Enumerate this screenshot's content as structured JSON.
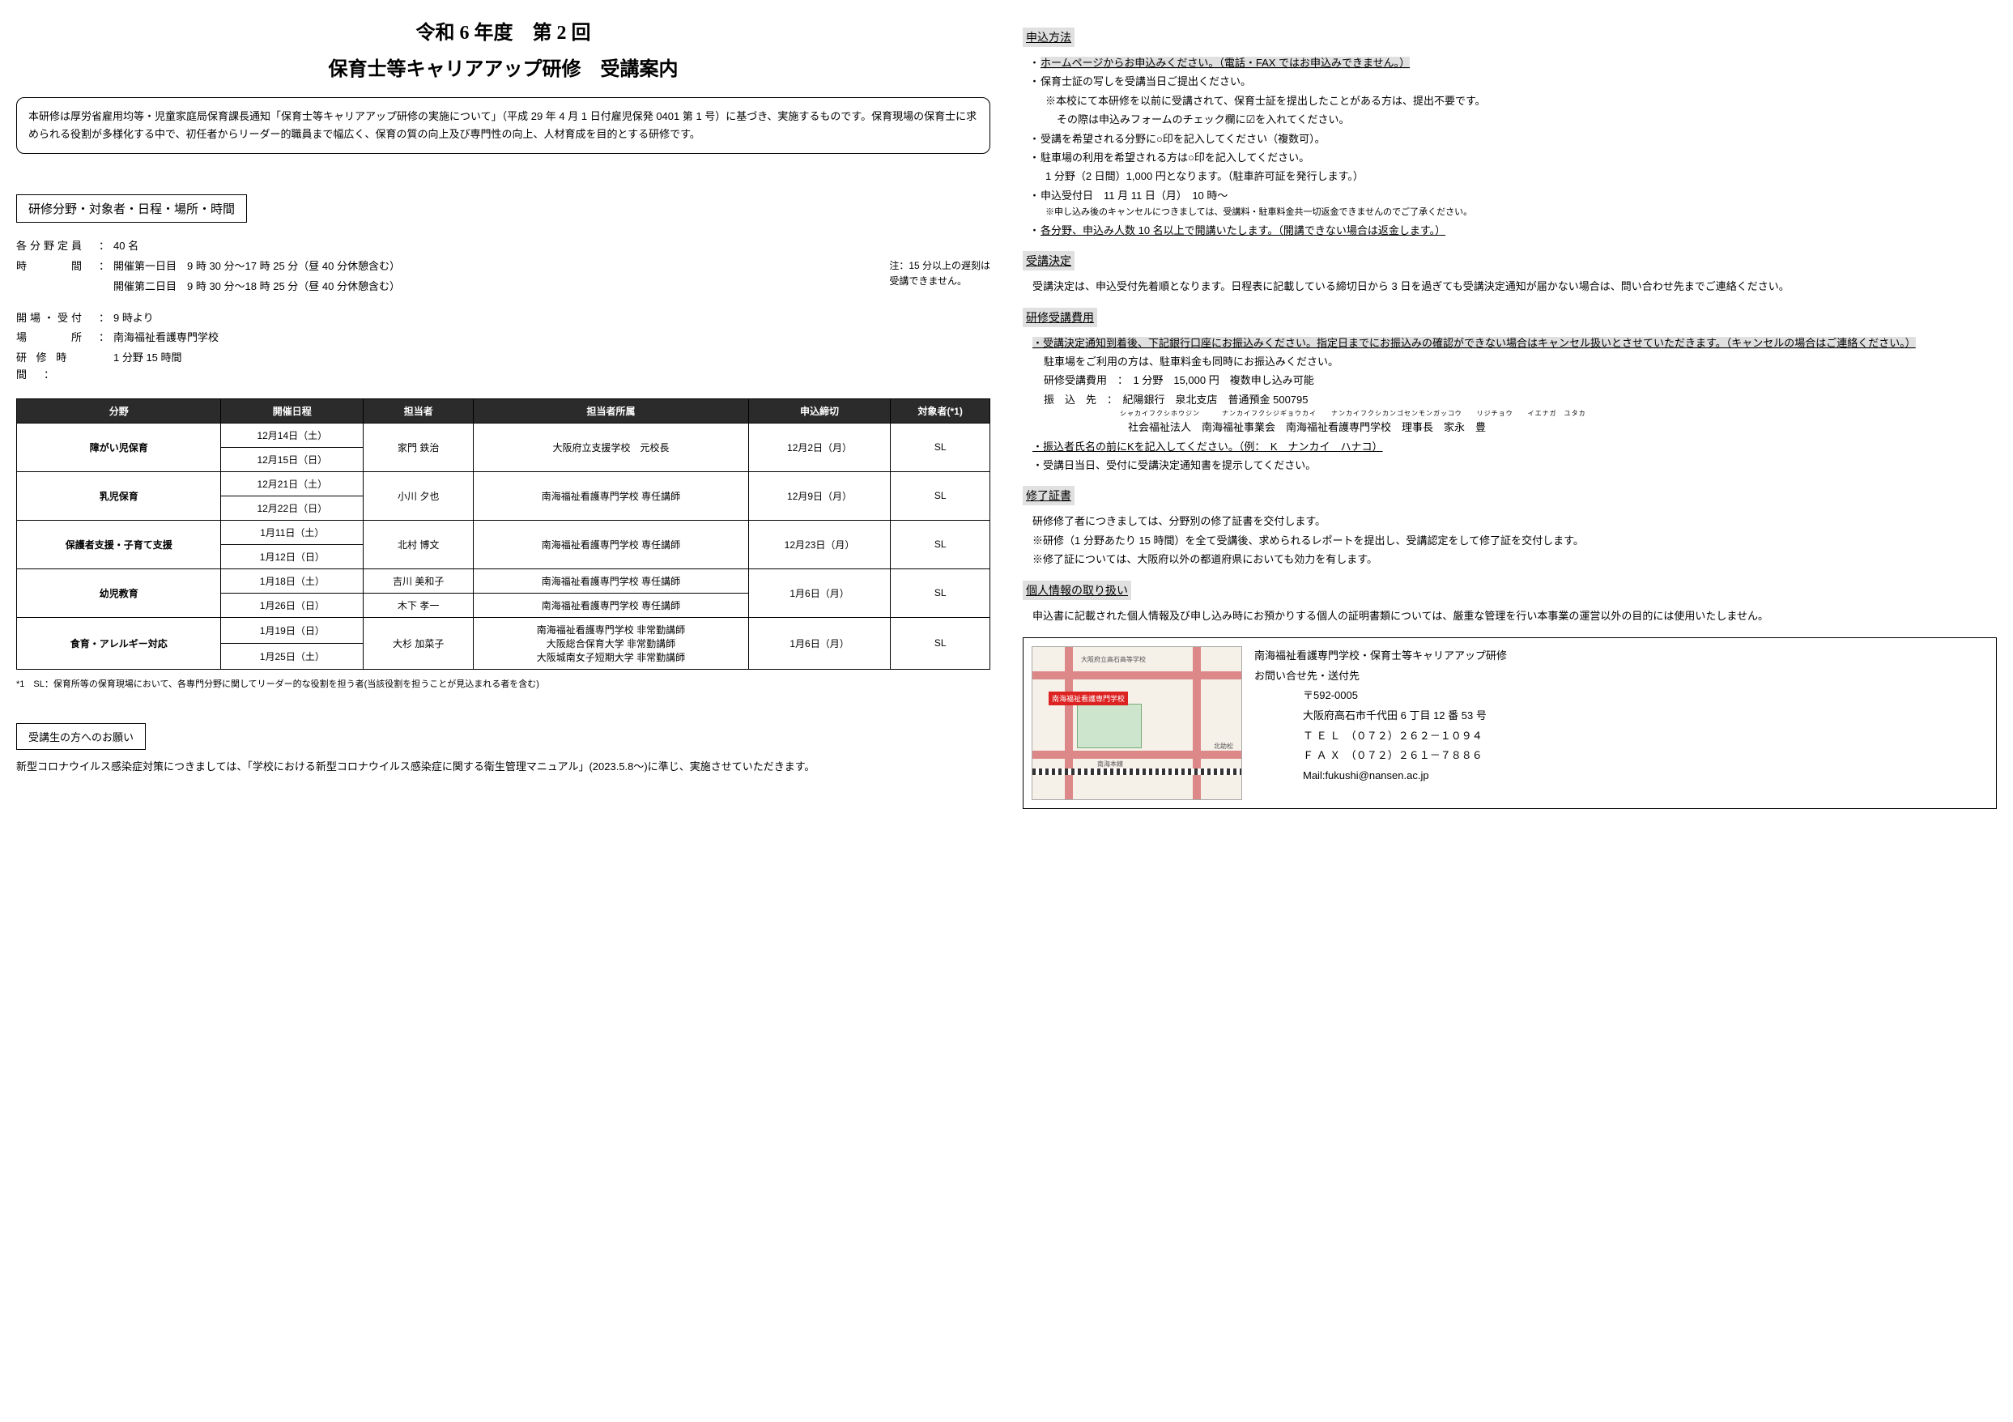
{
  "title_line1": "令和 6 年度　第 2 回",
  "title_line2": "保育士等キャリアアップ研修　受講案内",
  "intro": "本研修は厚労省雇用均等・児童家庭局保育課長通知「保育士等キャリアアップ研修の実施について」（平成 29 年 4 月 1 日付雇児保発 0401 第 1 号）に基づき、実施するものです。保育現場の保育士に求められる役割が多様化する中で、初任者からリーダー的職員まで幅広く、保育の質の向上及び専門性の向上、人材育成を目的とする研修です。",
  "overview_header": "研修分野・対象者・日程・場所・時間",
  "capacity_label": "各分野定員　：",
  "capacity": "40 名",
  "time_label": "時　　　間　：",
  "time1": "開催第一日目　9 時 30 分～17 時 25 分（昼 40 分休憩含む）",
  "time2": "開催第二日目　9 時 30 分～18 時 25 分（昼 40 分休憩含む）",
  "late_note1": "注：15 分以上の遅刻は",
  "late_note2": "受講できません。",
  "open_label": "開場・受付　：",
  "open": "9 時より",
  "place_label": "場　　　所　：",
  "place": "南海福祉看護専門学校",
  "duration_label": "研 修 時 間　：",
  "duration": "1 分野 15 時間",
  "table": {
    "headers": [
      "分野",
      "開催日程",
      "担当者",
      "担当者所属",
      "申込締切",
      "対象者(*1)"
    ],
    "rows": [
      {
        "field": "障がい児保育",
        "dates": [
          "12月14日（土）",
          "12月15日（日）"
        ],
        "lec": "家門 鉄治",
        "aff": "大阪府立支援学校　元校長",
        "due": "12月2日（月）",
        "tgt": "SL"
      },
      {
        "field": "乳児保育",
        "dates": [
          "12月21日（土）",
          "12月22日（日）"
        ],
        "lec": "小川 夕也",
        "aff": "南海福祉看護専門学校 専任講師",
        "due": "12月9日（月）",
        "tgt": "SL"
      },
      {
        "field": "保護者支援・子育て支援",
        "dates": [
          "1月11日（土）",
          "1月12日（日）"
        ],
        "lec": "北村 博文",
        "aff": "南海福祉看護専門学校 専任講師",
        "due": "12月23日（月）",
        "tgt": "SL"
      },
      {
        "field": "幼児教育",
        "dates": [
          "1月18日（土）",
          "1月26日（日）"
        ],
        "lec_split": [
          "吉川 美和子",
          "木下 孝一"
        ],
        "aff_split": [
          "南海福祉看護専門学校 専任講師",
          "南海福祉看護専門学校 専任講師"
        ],
        "due": "1月6日（月）",
        "tgt": "SL"
      },
      {
        "field": "食育・アレルギー対応",
        "dates": [
          "1月19日（日）",
          "1月25日（土）"
        ],
        "lec": "大杉 加菜子",
        "aff": "南海福祉看護専門学校 非常勤講師\n大阪総合保育大学 非常勤講師\n大阪城南女子短期大学 非常勤講師",
        "due": "1月6日（月）",
        "tgt": "SL"
      }
    ]
  },
  "footnote": "*1　SL：保育所等の保育現場において、各専門分野に関してリーダー的な役割を担う者(当該役割を担うことが見込まれる者を含む)",
  "request_header": "受講生の方へのお願い",
  "request_text": "新型コロナウイルス感染症対策につきましては、「学校における新型コロナウイルス感染症に関する衛生管理マニュアル」(2023.5.8～)に準じ、実施させていただきます。",
  "apply_header": "申込方法",
  "apply_b1": "ホームページからお申込みください。（電話・FAX ではお申込みできません。）",
  "apply_b2": "保育士証の写しを受講当日ご提出ください。",
  "apply_b2_sub1": "※本校にて本研修を以前に受講されて、保育士証を提出したことがある方は、提出不要です。",
  "apply_b2_sub2": "その際は申込みフォームのチェック欄に☑を入れてください。",
  "apply_b3": "受講を希望される分野に○印を記入してください（複数可）。",
  "apply_b4": "駐車場の利用を希望される方は○印を記入してください。",
  "apply_b4_sub": "1 分野（2 日間）1,000 円となります。（駐車許可証を発行します。）",
  "apply_b5": "申込受付日　11 月 11 日（月）　10 時～",
  "apply_b5_sub": "※申し込み後のキャンセルにつきましては、受講料・駐車料金共一切返金できませんのでご了承ください。",
  "apply_b6": "各分野、申込み人数 10 名以上で開講いたします。（開講できない場合は返金します。）",
  "decision_header": "受講決定",
  "decision_text": "受講決定は、申込受付先着順となります。日程表に記載している締切日から 3 日を過ぎても受講決定通知が届かない場合は、問い合わせ先までご連絡ください。",
  "fee_header": "研修受講費用",
  "fee_b1": "・受講決定通知到着後、下記銀行口座にお振込みください。指定日までにお振込みの確認ができない場合はキャンセル扱いとさせていただきます。（キャンセルの場合はご連絡ください。）",
  "fee_b2": "駐車場をご利用の方は、駐車料金も同時にお振込みください。",
  "fee_line1": "研修受講費用　：　1 分野　15,000 円　複数申し込み可能",
  "fee_line2": "振　込　先　：　紀陽銀行　泉北支店　普通預金 500795",
  "fee_ruby": "シャカイフクシホウジン　　　ナンカイフクシジギョウカイ　　ナンカイフクシカンゴセンモンガッコウ　　リジチョウ　　イエナガ　ユタカ",
  "fee_line3": "　　　　　　　　社会福祉法人　南海福祉事業会　南海福祉看護専門学校　理事長　家永　豊",
  "fee_b3": "・振込者氏名の前にKを記入してください。（例：　K　ナンカイ　ハナコ）",
  "fee_b4": "・受講日当日、受付に受講決定通知書を提示してください。",
  "cert_header": "修了証書",
  "cert_1": "研修修了者につきましては、分野別の修了証書を交付します。",
  "cert_2": "※研修（1 分野あたり 15 時間）を全て受講後、求められるレポートを提出し、受講認定をして修了証を交付します。",
  "cert_3": "※修了証については、大阪府以外の都道府県においても効力を有します。",
  "privacy_header": "個人情報の取り扱い",
  "privacy_text": "申込書に記載された個人情報及び申し込み時にお預かりする個人の証明書類については、厳重な管理を行い本事業の運営以外の目的には使用いたしません。",
  "contact": {
    "title": "南海福祉看護専門学校・保育士等キャリアアップ研修",
    "subtitle": "お問い合せ先・送付先",
    "zip": "〒592-0005",
    "addr": "大阪府高石市千代田 6 丁目 12 番 53 号",
    "tel": "Ｔ Ｅ Ｌ　（０７２）２６２－１０９４",
    "fax": "Ｆ Ａ Ｘ　（０７２）２６１－７８８６",
    "mail": "Mail:fukushi@nansen.ac.jp",
    "map_label": "南海福祉看護専門学校"
  }
}
